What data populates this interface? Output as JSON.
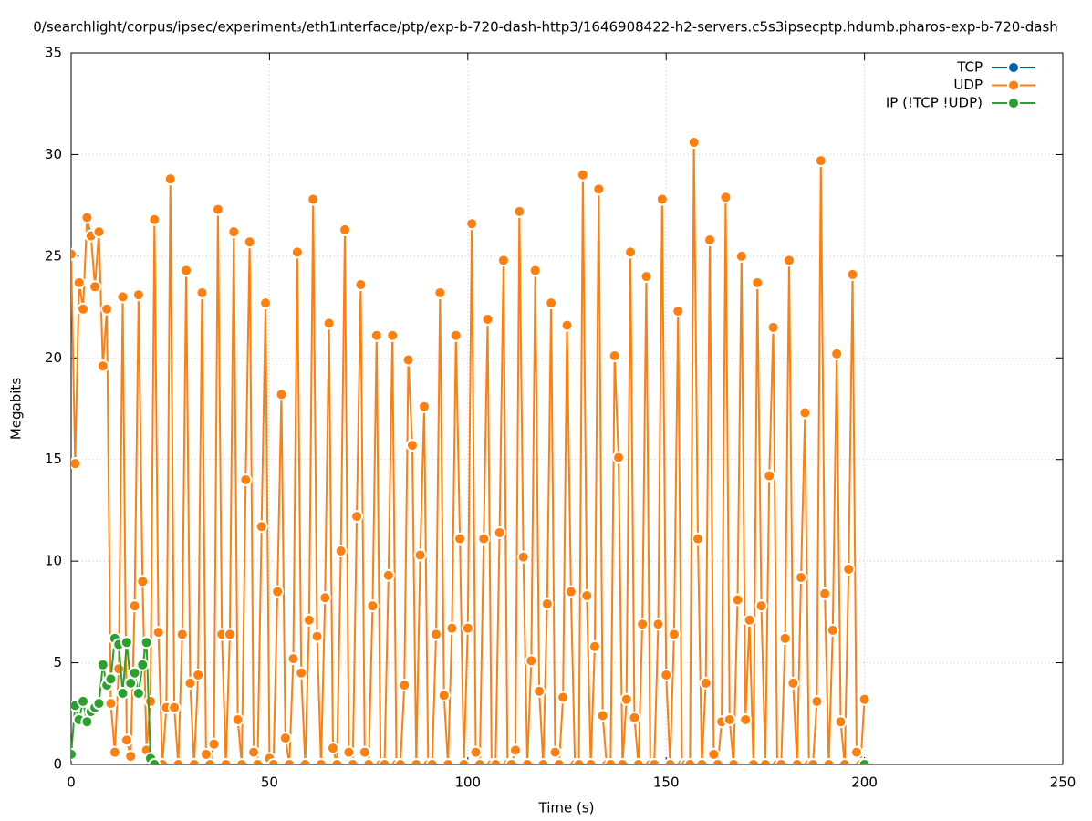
{
  "chart_data": {
    "type": "line",
    "title": "0/searchlight/corpus/ipsec/experiment₃/eth1ᵢnterface/ptp/exp-b-720-dash-http3/1646908422-h2-servers.c5s3ipsecptp.hdumb.pharos-exp-b-720-dash",
    "xlabel": "Time (s)",
    "ylabel": "Megabits",
    "x": [
      0,
      1,
      2,
      3,
      4,
      5,
      6,
      7,
      8,
      9,
      10,
      11,
      12,
      13,
      14,
      15,
      16,
      17,
      18,
      19,
      20,
      21,
      22,
      23,
      24,
      25,
      26,
      27,
      28,
      29,
      30,
      31,
      32,
      33,
      34,
      35,
      36,
      37,
      38,
      39,
      40,
      41,
      42,
      43,
      44,
      45,
      46,
      47,
      48,
      49,
      50,
      51,
      52,
      53,
      54,
      55,
      56,
      57,
      58,
      59,
      60,
      61,
      62,
      63,
      64,
      65,
      66,
      67,
      68,
      69,
      70,
      71,
      72,
      73,
      74,
      75,
      76,
      77,
      78,
      79,
      80,
      81,
      82,
      83,
      84,
      85,
      86,
      87,
      88,
      89,
      90,
      91,
      92,
      93,
      94,
      95,
      96,
      97,
      98,
      99,
      100,
      101,
      102,
      103,
      104,
      105,
      106,
      107,
      108,
      109,
      110,
      111,
      112,
      113,
      114,
      115,
      116,
      117,
      118,
      119,
      120,
      121,
      122,
      123,
      124,
      125,
      126,
      127,
      128,
      129,
      130,
      131,
      132,
      133,
      134,
      135,
      136,
      137,
      138,
      139,
      140,
      141,
      142,
      143,
      144,
      145,
      146,
      147,
      148,
      149,
      150,
      151,
      152,
      153,
      154,
      155,
      156,
      157,
      158,
      159,
      160,
      161,
      162,
      163,
      164,
      165,
      166,
      167,
      168,
      169,
      170,
      171,
      172,
      173,
      174,
      175,
      176,
      177,
      178,
      179,
      180,
      181,
      182,
      183,
      184,
      185,
      186,
      187,
      188,
      189,
      190,
      191,
      192,
      193,
      194,
      195,
      196,
      197,
      198,
      199,
      200
    ],
    "series": [
      {
        "name": "TCP",
        "color": "#0060ad"
      },
      {
        "name": "UDP",
        "color": "#ff7f0e",
        "values": [
          25.1,
          14.8,
          23.7,
          22.4,
          26.9,
          26.0,
          23.5,
          26.2,
          19.6,
          22.4,
          3.0,
          0.6,
          4.7,
          23.0,
          1.2,
          0.4,
          7.8,
          23.1,
          9.0,
          0.7,
          3.1,
          26.8,
          6.5,
          0,
          2.8,
          28.8,
          2.8,
          0,
          6.4,
          24.3,
          4.0,
          0,
          4.4,
          23.2,
          0.5,
          0,
          1.0,
          27.3,
          6.4,
          0,
          6.4,
          26.2,
          2.2,
          0,
          14.0,
          25.7,
          0.6,
          0,
          11.7,
          22.7,
          0.3,
          0,
          8.5,
          18.2,
          1.3,
          0,
          5.2,
          25.2,
          4.5,
          0,
          7.1,
          27.8,
          6.3,
          0,
          8.2,
          21.7,
          0.8,
          0,
          10.5,
          26.3,
          0.6,
          0,
          12.2,
          23.6,
          0.6,
          0,
          7.8,
          21.1,
          0,
          0,
          9.3,
          21.1,
          0,
          0,
          3.9,
          19.9,
          15.7,
          0,
          10.3,
          17.6,
          0,
          0,
          6.4,
          23.2,
          3.4,
          0,
          6.7,
          21.1,
          11.1,
          0,
          6.7,
          26.6,
          0.6,
          0,
          11.1,
          21.9,
          0,
          0,
          11.4,
          24.8,
          0,
          0,
          0.7,
          27.2,
          10.2,
          0,
          5.1,
          24.3,
          3.6,
          0,
          7.9,
          22.7,
          0.6,
          0,
          3.3,
          21.6,
          8.5,
          0,
          0,
          29.0,
          8.3,
          0,
          5.8,
          28.3,
          2.4,
          0,
          0,
          20.1,
          15.1,
          0,
          3.2,
          25.2,
          2.3,
          0,
          6.9,
          24.0,
          0,
          0,
          6.9,
          27.8,
          4.4,
          0,
          6.4,
          22.3,
          0,
          0,
          0,
          30.6,
          11.1,
          0,
          4.0,
          25.8,
          0.5,
          0,
          2.1,
          27.9,
          2.2,
          0,
          8.1,
          25.0,
          2.2,
          7.1,
          0,
          23.7,
          7.8,
          0,
          14.2,
          21.5,
          0,
          0,
          6.2,
          24.8,
          4.0,
          0,
          9.2,
          17.3,
          0,
          0,
          3.1,
          29.7,
          8.4,
          0,
          6.6,
          20.2,
          2.1,
          0,
          9.6,
          24.1,
          0.6,
          0,
          3.2
        ]
      },
      {
        "name": "IP (!TCP  !UDP)",
        "color": "#2ca02c",
        "x": [
          0,
          1,
          2,
          3,
          4,
          5,
          6,
          7,
          8,
          9,
          10,
          11,
          12,
          13,
          14,
          15,
          16,
          17,
          18,
          19,
          20,
          21,
          200
        ],
        "values": [
          0.5,
          2.9,
          2.2,
          3.1,
          2.1,
          2.6,
          2.8,
          3.0,
          4.9,
          3.9,
          4.2,
          6.2,
          5.9,
          3.5,
          6.0,
          4.0,
          4.5,
          3.5,
          4.9,
          6.0,
          0.3,
          0,
          0
        ]
      }
    ],
    "xlim": [
      0,
      250
    ],
    "xticks": [
      0,
      50,
      100,
      150,
      200,
      250
    ],
    "ylim": [
      0,
      35
    ],
    "yticks": [
      0,
      5,
      10,
      15,
      20,
      25,
      30,
      35
    ],
    "grid": true,
    "legend": "top-right"
  }
}
